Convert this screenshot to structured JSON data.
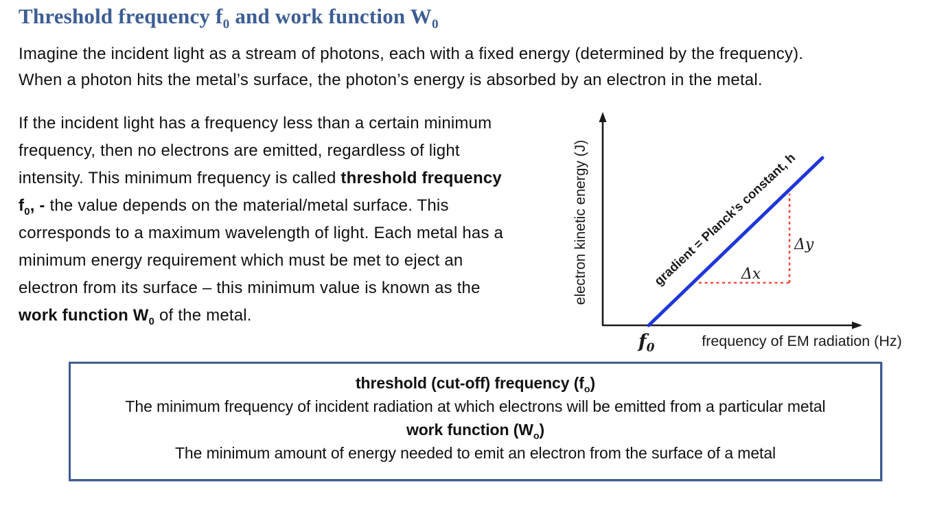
{
  "colors": {
    "title": "#3d5e94",
    "body_text": "#111111",
    "graph_line": "#1f36d8",
    "gradient_triangle_dash": "#f04c3c",
    "axis": "#1a1a1a",
    "box_border": "#3e5c93"
  },
  "title": {
    "segments": [
      {
        "text": "Threshold frequency f"
      },
      {
        "text": "0",
        "sub": true
      },
      {
        "text": " and work function W"
      },
      {
        "text": "0",
        "sub": true
      }
    ]
  },
  "intro": {
    "lines": [
      [
        {
          "text": "Imagine the incident light as a stream of photons, each with a fixed energy (determined by the frequency)."
        }
      ],
      [
        {
          "text": "When a photon hits the metal’s surface, the photon’s energy is absorbed by an electron in the metal."
        }
      ]
    ]
  },
  "body": {
    "lines": [
      [
        {
          "text": "If the incident light has a frequency less than a certain minimum"
        }
      ],
      [
        {
          "text": "frequency, then no electrons are emitted, regardless of light"
        }
      ],
      [
        {
          "text": "intensity. This minimum frequency is called "
        },
        {
          "text": "threshold frequency",
          "bold": true
        }
      ],
      [
        {
          "text": "f",
          "bold": true
        },
        {
          "text": "0",
          "bold": true,
          "sub": true
        },
        {
          "text": ", -",
          "bold": true
        },
        {
          "text": " the value depends on the material/metal surface. This"
        }
      ],
      [
        {
          "text": "corresponds to a maximum wavelength of light. Each metal has a"
        }
      ],
      [
        {
          "text": "minimum energy requirement which must be met to eject an"
        }
      ],
      [
        {
          "text": "electron from its surface – this minimum value is known as the"
        }
      ],
      [
        {
          "text": "work function W",
          "bold": true
        },
        {
          "text": "0",
          "bold": true,
          "sub": true
        },
        {
          "text": " of the metal."
        }
      ]
    ]
  },
  "graph": {
    "y_axis_label": "electron kinetic energy (J)",
    "x_axis_label": "frequency of EM radiation (Hz)",
    "gradient_label": "gradient  = Planck’s constant, h",
    "delta_x": "Δx",
    "delta_y": "Δy",
    "intercept_main": "f",
    "intercept_sub": "0",
    "line_color": "#1f36d8",
    "dash_color": "#f04c3c"
  },
  "chart_data": {
    "type": "line",
    "title": "",
    "xlabel": "frequency of EM radiation (Hz)",
    "ylabel": "electron kinetic energy (J)",
    "series": [
      {
        "name": "electron kinetic energy vs frequency",
        "description": "straight line of positive slope starting at threshold frequency f0 on the x-axis; gradient equals Planck's constant h, illustrated with a dashed rise-over-run triangle (Δy over Δx)",
        "x_intercept_label": "f0"
      }
    ],
    "annotations": [
      "gradient  = Planck’s constant, h",
      "Δx",
      "Δy",
      "f0"
    ],
    "grid": false,
    "legend": false
  },
  "definitions": {
    "lines": [
      [
        {
          "text": "threshold (cut-off) frequency (f",
          "bold": true
        },
        {
          "text": "o",
          "bold": true,
          "sub": true
        },
        {
          "text": ")",
          "bold": true
        }
      ],
      [
        {
          "text": "The minimum frequency of incident radiation at which electrons will be emitted from a particular metal"
        }
      ],
      [
        {
          "text": "work function (W",
          "bold": true
        },
        {
          "text": "o",
          "bold": true,
          "sub": true
        },
        {
          "text": ")",
          "bold": true
        }
      ],
      [
        {
          "text": "The minimum amount of energy needed to emit an electron from the surface of a metal"
        }
      ]
    ]
  }
}
